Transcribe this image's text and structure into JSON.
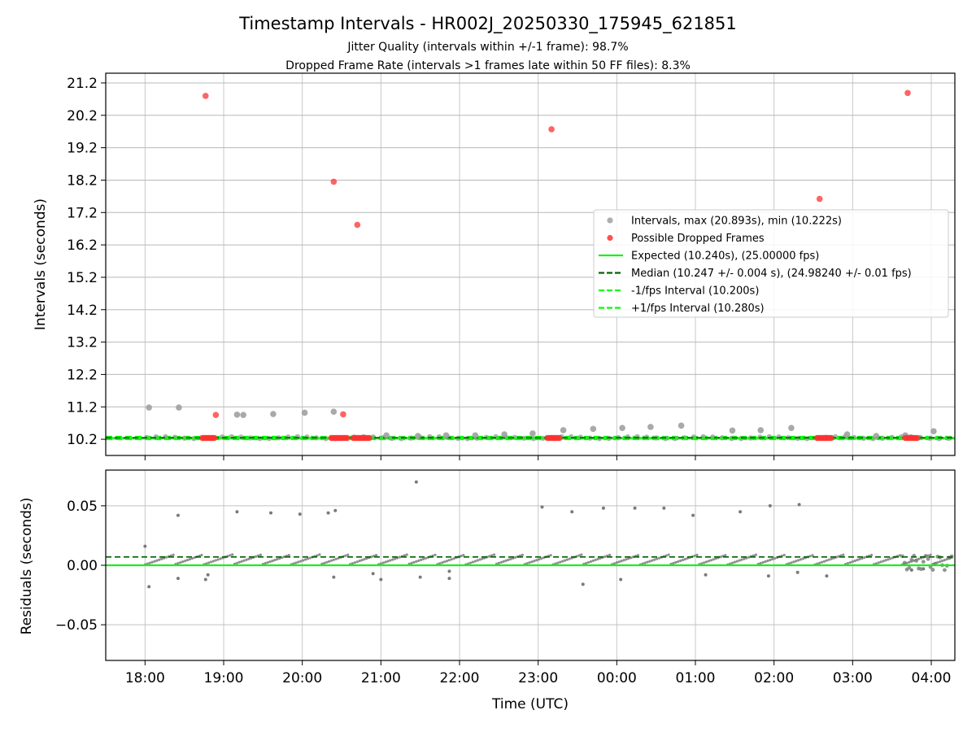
{
  "figure": {
    "title": "Timestamp Intervals - HR002J_20250330_175945_621851",
    "subtitle1": "Jitter Quality (intervals within +/-1 frame): 98.7%",
    "subtitle2": "Dropped Frame Rate (intervals >1 frames late within 50 FF files): 8.3%"
  },
  "colors": {
    "expected": "#1aef1a",
    "median": "#006400",
    "fps_band": "#00ff00",
    "intervals": "#a0a0a0",
    "dropped": "#ff3030",
    "residuals": "#7a7a7a",
    "grid": "#c8c8c8"
  },
  "chart_data": [
    {
      "type": "scatter",
      "ylabel": "Intervals (seconds)",
      "y_ticks": [
        "10.2",
        "11.2",
        "12.2",
        "13.2",
        "14.2",
        "15.2",
        "16.2",
        "17.2",
        "18.2",
        "19.2",
        "20.2",
        "21.2"
      ],
      "ylim": [
        9.7,
        21.5
      ],
      "xlim": [
        -0.5,
        10.3
      ],
      "grid": true,
      "legend_position": "right",
      "legend": [
        {
          "label": "Intervals, max (20.893s), min (10.222s)",
          "kind": "marker",
          "color": "#a0a0a0"
        },
        {
          "label": "Possible Dropped Frames",
          "kind": "marker",
          "color": "#ff3030"
        },
        {
          "label": "Expected (10.240s), (25.00000 fps)",
          "kind": "solid",
          "color": "#1aef1a"
        },
        {
          "label": "Median (10.247 +/- 0.004 s), (24.98240 +/- 0.01 fps)",
          "kind": "dashed",
          "color": "#006400"
        },
        {
          "label": "-1/fps Interval (10.200s)",
          "kind": "dashed",
          "color": "#00ff00"
        },
        {
          "label": "+1/fps Interval (10.280s)",
          "kind": "dashed",
          "color": "#00ff00"
        }
      ],
      "expected": 10.24,
      "median": 10.247,
      "minus_fps": 10.2,
      "plus_fps": 10.28,
      "interval_points": [
        {
          "x": 0.05,
          "y": 11.18
        },
        {
          "x": 0.43,
          "y": 11.18
        },
        {
          "x": 1.17,
          "y": 10.96
        },
        {
          "x": 1.25,
          "y": 10.95
        },
        {
          "x": 1.63,
          "y": 10.98
        },
        {
          "x": 2.03,
          "y": 11.02
        },
        {
          "x": 2.4,
          "y": 11.05
        },
        {
          "x": 3.07,
          "y": 10.32
        },
        {
          "x": 3.47,
          "y": 10.3
        },
        {
          "x": 3.83,
          "y": 10.32
        },
        {
          "x": 4.2,
          "y": 10.32
        },
        {
          "x": 4.57,
          "y": 10.35
        },
        {
          "x": 4.93,
          "y": 10.38
        },
        {
          "x": 5.32,
          "y": 10.48
        },
        {
          "x": 5.7,
          "y": 10.52
        },
        {
          "x": 6.07,
          "y": 10.55
        },
        {
          "x": 6.43,
          "y": 10.58
        },
        {
          "x": 6.82,
          "y": 10.62
        },
        {
          "x": 7.47,
          "y": 10.47
        },
        {
          "x": 7.83,
          "y": 10.48
        },
        {
          "x": 8.22,
          "y": 10.55
        },
        {
          "x": 8.93,
          "y": 10.35
        },
        {
          "x": 9.3,
          "y": 10.3
        },
        {
          "x": 9.67,
          "y": 10.32
        },
        {
          "x": 10.03,
          "y": 10.45
        }
      ],
      "dropped_points": [
        {
          "x": 0.77,
          "y": 20.8
        },
        {
          "x": 0.9,
          "y": 10.95
        },
        {
          "x": 2.4,
          "y": 18.15
        },
        {
          "x": 2.52,
          "y": 10.97
        },
        {
          "x": 2.7,
          "y": 16.82
        },
        {
          "x": 5.17,
          "y": 19.77
        },
        {
          "x": 8.58,
          "y": 17.62
        },
        {
          "x": 9.7,
          "y": 20.89
        }
      ],
      "dropped_clusters": [
        {
          "x0": 0.73,
          "x1": 0.88
        },
        {
          "x0": 2.37,
          "x1": 2.57
        },
        {
          "x0": 2.65,
          "x1": 2.85
        },
        {
          "x0": 5.12,
          "x1": 5.27
        },
        {
          "x0": 8.55,
          "x1": 8.73
        },
        {
          "x0": 9.67,
          "x1": 9.82
        }
      ]
    },
    {
      "type": "scatter",
      "ylabel": "Residuals (seconds)",
      "xlabel": "Time (UTC)",
      "y_ticks": [
        {
          "value": 0.05,
          "label": "0.05"
        },
        {
          "value": 0.0,
          "label": "0.00"
        },
        {
          "value": -0.05,
          "label": "−0.05"
        }
      ],
      "ylim": [
        -0.08,
        0.08
      ],
      "xlim": [
        -0.5,
        10.3
      ],
      "grid": true,
      "x_ticks": [
        "18:00",
        "19:00",
        "20:00",
        "21:00",
        "22:00",
        "23:00",
        "00:00",
        "01:00",
        "02:00",
        "03:00",
        "04:00"
      ],
      "expected": 0.0,
      "median": 0.007,
      "outliers": [
        {
          "x": 0.0,
          "y": 0.016
        },
        {
          "x": 0.05,
          "y": -0.018
        },
        {
          "x": 0.42,
          "y": 0.042
        },
        {
          "x": 0.42,
          "y": -0.011
        },
        {
          "x": 0.77,
          "y": -0.012
        },
        {
          "x": 0.8,
          "y": -0.008
        },
        {
          "x": 1.17,
          "y": 0.045
        },
        {
          "x": 1.6,
          "y": 0.044
        },
        {
          "x": 1.97,
          "y": 0.043
        },
        {
          "x": 2.33,
          "y": 0.044
        },
        {
          "x": 2.42,
          "y": 0.046
        },
        {
          "x": 2.4,
          "y": -0.01
        },
        {
          "x": 2.9,
          "y": -0.007
        },
        {
          "x": 3.0,
          "y": -0.012
        },
        {
          "x": 3.45,
          "y": 0.07
        },
        {
          "x": 3.5,
          "y": -0.01
        },
        {
          "x": 3.87,
          "y": -0.005
        },
        {
          "x": 3.87,
          "y": -0.011
        },
        {
          "x": 5.05,
          "y": 0.049
        },
        {
          "x": 5.43,
          "y": 0.045
        },
        {
          "x": 5.57,
          "y": -0.016
        },
        {
          "x": 5.83,
          "y": 0.048
        },
        {
          "x": 6.05,
          "y": -0.012
        },
        {
          "x": 6.23,
          "y": 0.048
        },
        {
          "x": 6.6,
          "y": 0.048
        },
        {
          "x": 6.97,
          "y": 0.042
        },
        {
          "x": 7.13,
          "y": -0.008
        },
        {
          "x": 7.57,
          "y": 0.045
        },
        {
          "x": 7.93,
          "y": -0.009
        },
        {
          "x": 7.95,
          "y": 0.05
        },
        {
          "x": 8.32,
          "y": 0.051
        },
        {
          "x": 8.3,
          "y": -0.006
        },
        {
          "x": 8.67,
          "y": -0.009
        },
        {
          "x": 9.75,
          "y": -0.004
        },
        {
          "x": 9.9,
          "y": -0.003
        }
      ]
    }
  ]
}
